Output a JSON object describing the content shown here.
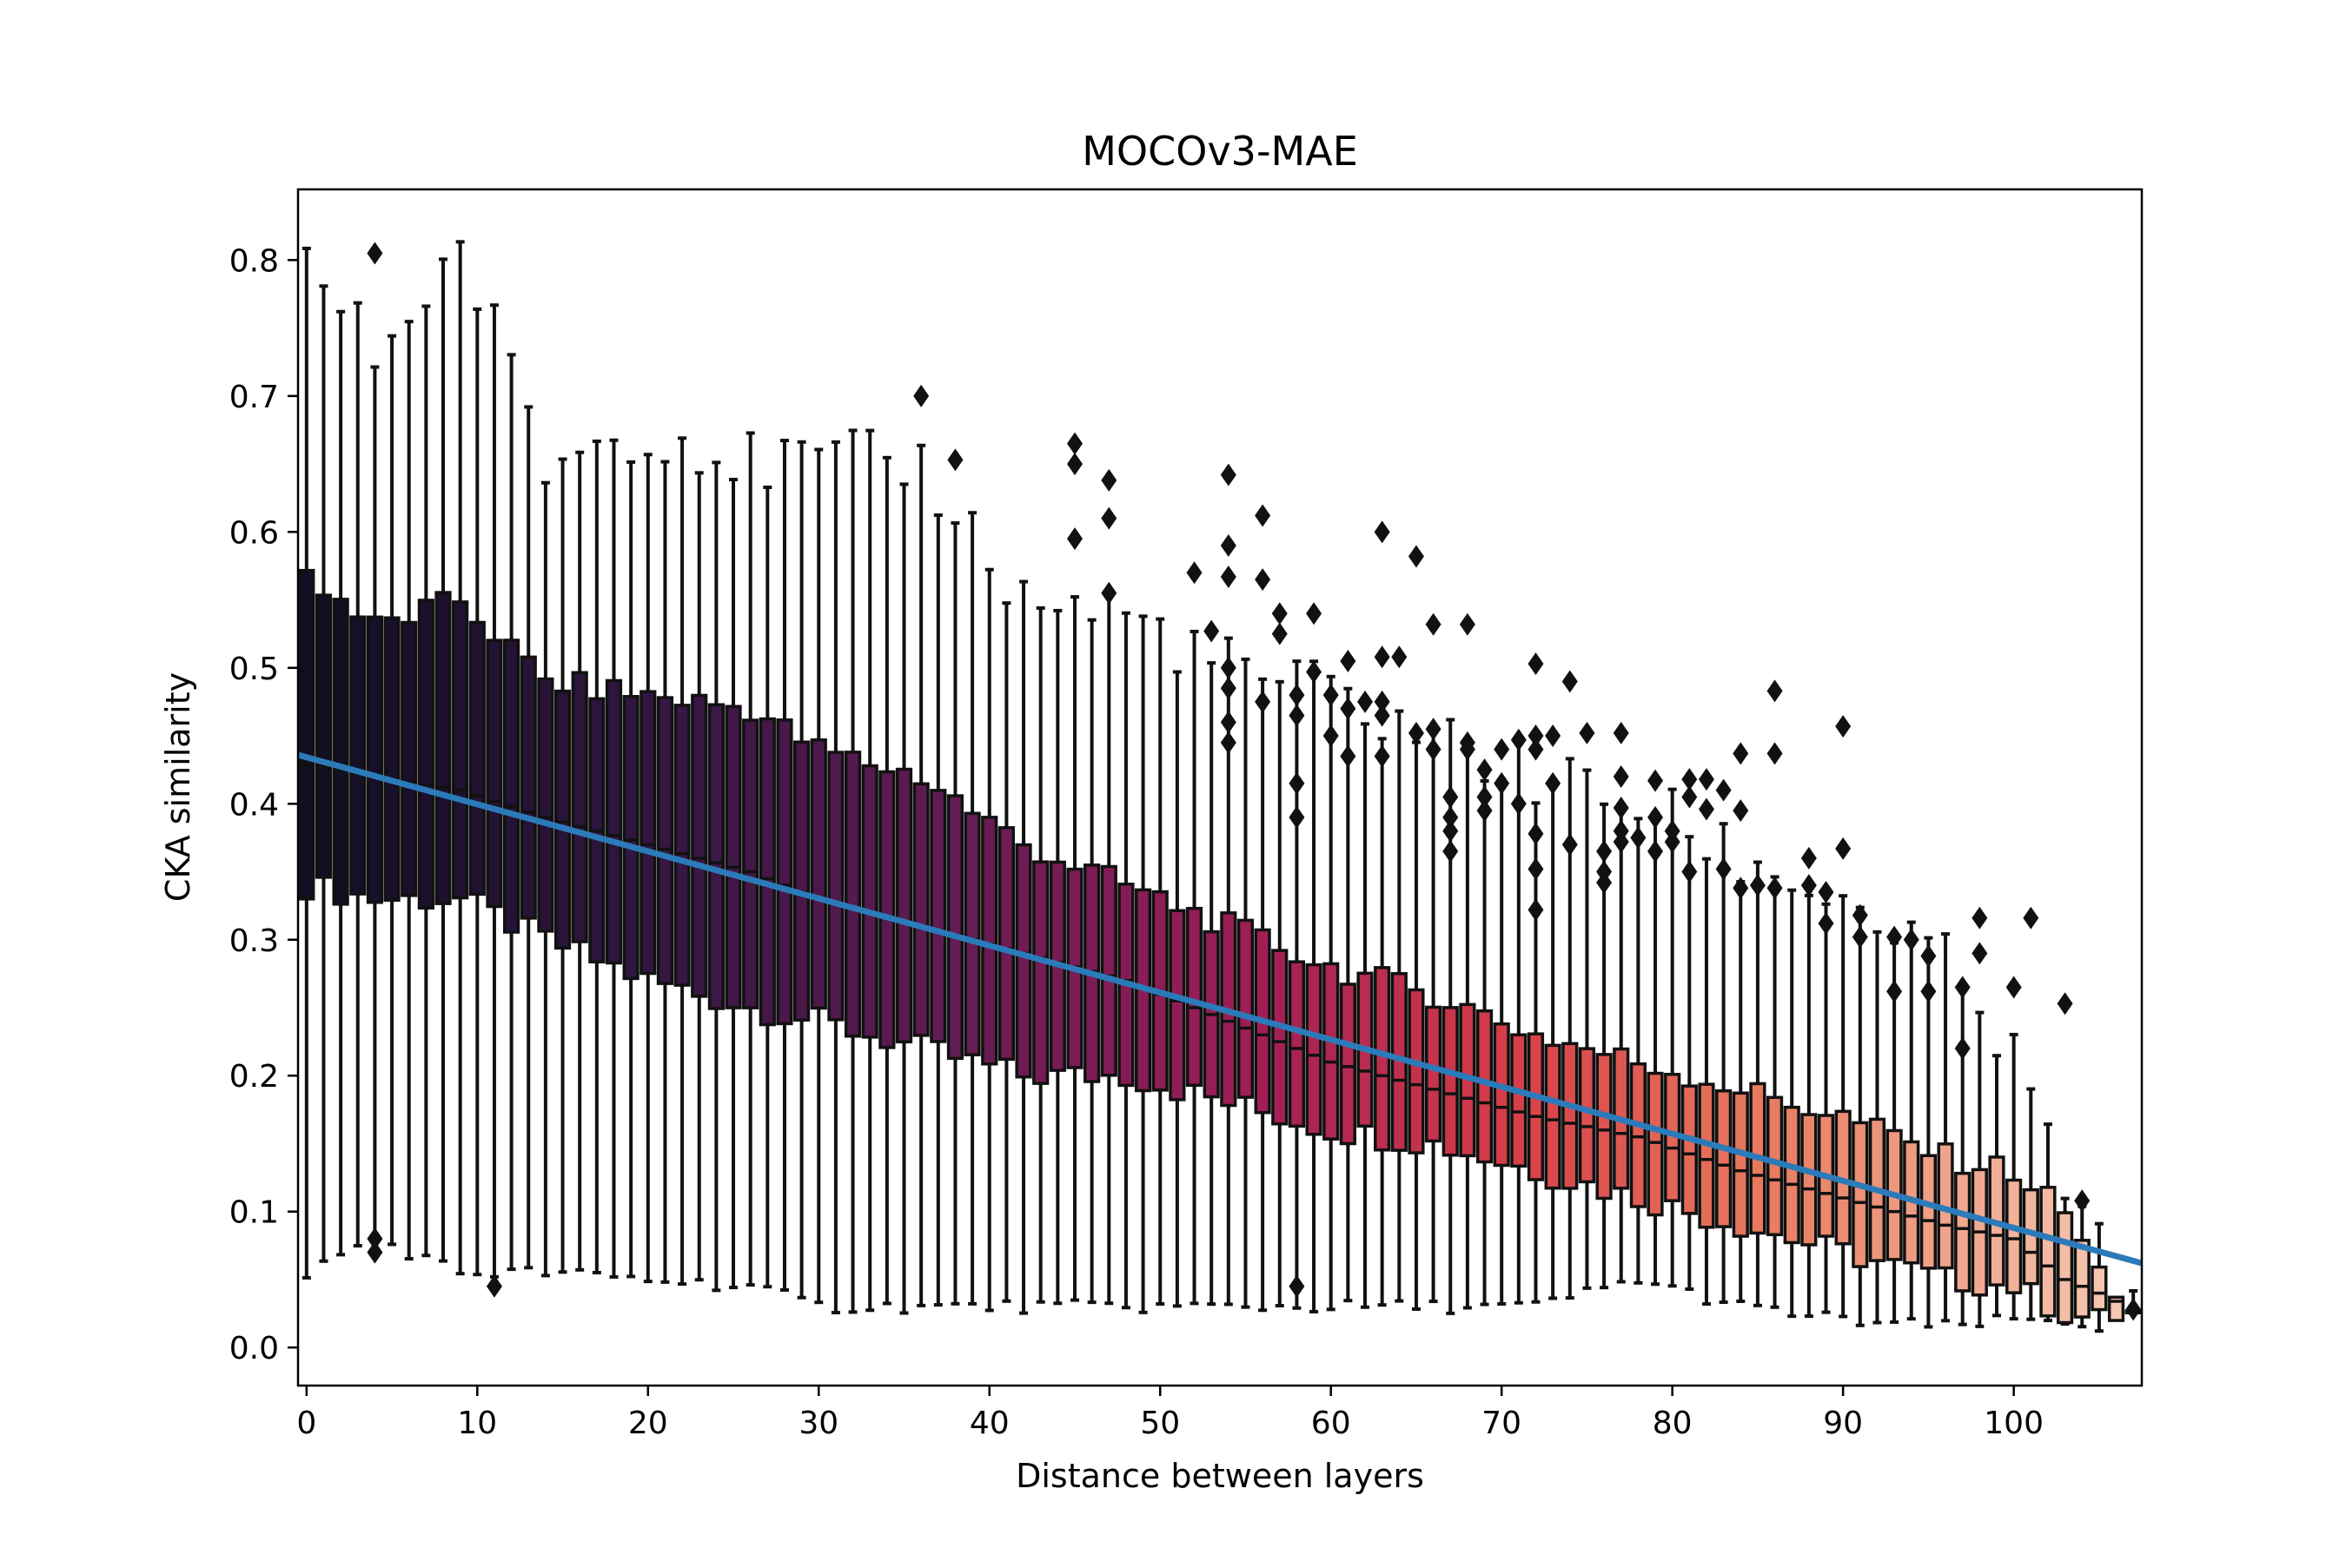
{
  "chart_data": {
    "type": "box",
    "title": "MOCOv3-MAE",
    "xlabel": "Distance between layers",
    "ylabel": "CKA similarity",
    "xlim": [
      -0.5,
      107.5
    ],
    "ylim": [
      -0.028,
      0.852
    ],
    "x_ticks": [
      0,
      10,
      20,
      30,
      40,
      50,
      60,
      70,
      80,
      90,
      100
    ],
    "y_ticks": [
      0.0,
      0.1,
      0.2,
      0.3,
      0.4,
      0.5,
      0.6,
      0.7,
      0.8
    ],
    "x_tick_labels": [
      "0",
      "10",
      "20",
      "30",
      "40",
      "50",
      "60",
      "70",
      "80",
      "90",
      "100"
    ],
    "y_tick_labels": [
      "0.0",
      "0.1",
      "0.2",
      "0.3",
      "0.4",
      "0.5",
      "0.6",
      "0.7",
      "0.8"
    ],
    "grid": false,
    "legend": "none",
    "box_palette": "dark purple (left) to red to light peach (right)",
    "fit_line_color": "#2b7bba",
    "box_count": 108,
    "box_anchors": [
      {
        "x": 0,
        "q1": 0.34,
        "median": 0.43,
        "q3": 0.57,
        "whislo": 0.055,
        "whishi": 0.8
      },
      {
        "x": 4,
        "q1": 0.33,
        "median": 0.42,
        "q3": 0.53,
        "whislo": 0.08,
        "whishi": 0.73
      },
      {
        "x": 9,
        "q1": 0.33,
        "median": 0.41,
        "q3": 0.55,
        "whislo": 0.055,
        "whishi": 0.81
      },
      {
        "x": 14,
        "q1": 0.3,
        "median": 0.39,
        "q3": 0.49,
        "whislo": 0.055,
        "whishi": 0.65
      },
      {
        "x": 20,
        "q1": 0.27,
        "median": 0.37,
        "q3": 0.48,
        "whislo": 0.05,
        "whishi": 0.68
      },
      {
        "x": 26,
        "q1": 0.25,
        "median": 0.35,
        "q3": 0.47,
        "whislo": 0.045,
        "whishi": 0.65
      },
      {
        "x": 30,
        "q1": 0.24,
        "median": 0.33,
        "q3": 0.44,
        "whislo": 0.03,
        "whishi": 0.65
      },
      {
        "x": 36,
        "q1": 0.22,
        "median": 0.31,
        "q3": 0.42,
        "whislo": 0.03,
        "whishi": 0.65
      },
      {
        "x": 42,
        "q1": 0.2,
        "median": 0.29,
        "q3": 0.37,
        "whislo": 0.03,
        "whishi": 0.55
      },
      {
        "x": 48,
        "q1": 0.2,
        "median": 0.27,
        "q3": 0.34,
        "whislo": 0.03,
        "whishi": 0.54
      },
      {
        "x": 54,
        "q1": 0.18,
        "median": 0.24,
        "q3": 0.31,
        "whislo": 0.03,
        "whishi": 0.5
      },
      {
        "x": 60,
        "q1": 0.16,
        "median": 0.21,
        "q3": 0.28,
        "whislo": 0.03,
        "whishi": 0.48
      },
      {
        "x": 66,
        "q1": 0.15,
        "median": 0.19,
        "q3": 0.26,
        "whislo": 0.03,
        "whishi": 0.45
      },
      {
        "x": 72,
        "q1": 0.13,
        "median": 0.17,
        "q3": 0.23,
        "whislo": 0.03,
        "whishi": 0.42
      },
      {
        "x": 78,
        "q1": 0.11,
        "median": 0.155,
        "q3": 0.21,
        "whislo": 0.05,
        "whishi": 0.4
      },
      {
        "x": 84,
        "q1": 0.09,
        "median": 0.13,
        "q3": 0.19,
        "whislo": 0.03,
        "whishi": 0.36
      },
      {
        "x": 90,
        "q1": 0.07,
        "median": 0.11,
        "q3": 0.17,
        "whislo": 0.02,
        "whishi": 0.33
      },
      {
        "x": 96,
        "q1": 0.05,
        "median": 0.09,
        "q3": 0.14,
        "whislo": 0.015,
        "whishi": 0.28
      },
      {
        "x": 100,
        "q1": 0.045,
        "median": 0.08,
        "q3": 0.13,
        "whislo": 0.02,
        "whishi": 0.21
      },
      {
        "x": 103,
        "q1": 0.025,
        "median": 0.05,
        "q3": 0.1,
        "whislo": 0.02,
        "whishi": 0.12
      },
      {
        "x": 105,
        "q1": 0.02,
        "median": 0.04,
        "q3": 0.055,
        "whislo": 0.015,
        "whishi": 0.07
      },
      {
        "x": 107,
        "q1": 0.026,
        "median": 0.028,
        "q3": 0.03,
        "whislo": 0.026,
        "whishi": 0.03
      }
    ],
    "outliers": [
      {
        "x": 4,
        "y": 0.805
      },
      {
        "x": 4,
        "y": 0.08
      },
      {
        "x": 4,
        "y": 0.07
      },
      {
        "x": 11,
        "y": 0.045
      },
      {
        "x": 36,
        "y": 0.7
      },
      {
        "x": 38,
        "y": 0.653
      },
      {
        "x": 45,
        "y": 0.665
      },
      {
        "x": 45,
        "y": 0.65
      },
      {
        "x": 45,
        "y": 0.595
      },
      {
        "x": 47,
        "y": 0.638
      },
      {
        "x": 47,
        "y": 0.61
      },
      {
        "x": 47,
        "y": 0.555
      },
      {
        "x": 52,
        "y": 0.57
      },
      {
        "x": 53,
        "y": 0.527
      },
      {
        "x": 54,
        "y": 0.642
      },
      {
        "x": 54,
        "y": 0.59
      },
      {
        "x": 54,
        "y": 0.567
      },
      {
        "x": 54,
        "y": 0.5
      },
      {
        "x": 54,
        "y": 0.485
      },
      {
        "x": 54,
        "y": 0.46
      },
      {
        "x": 54,
        "y": 0.445
      },
      {
        "x": 56,
        "y": 0.612
      },
      {
        "x": 56,
        "y": 0.565
      },
      {
        "x": 56,
        "y": 0.475
      },
      {
        "x": 57,
        "y": 0.54
      },
      {
        "x": 57,
        "y": 0.525
      },
      {
        "x": 58,
        "y": 0.48
      },
      {
        "x": 58,
        "y": 0.465
      },
      {
        "x": 58,
        "y": 0.415
      },
      {
        "x": 58,
        "y": 0.39
      },
      {
        "x": 58,
        "y": 0.045
      },
      {
        "x": 59,
        "y": 0.54
      },
      {
        "x": 59,
        "y": 0.497
      },
      {
        "x": 60,
        "y": 0.48
      },
      {
        "x": 60,
        "y": 0.45
      },
      {
        "x": 61,
        "y": 0.505
      },
      {
        "x": 61,
        "y": 0.47
      },
      {
        "x": 61,
        "y": 0.435
      },
      {
        "x": 62,
        "y": 0.475
      },
      {
        "x": 63,
        "y": 0.6
      },
      {
        "x": 63,
        "y": 0.508
      },
      {
        "x": 63,
        "y": 0.475
      },
      {
        "x": 63,
        "y": 0.465
      },
      {
        "x": 63,
        "y": 0.435
      },
      {
        "x": 64,
        "y": 0.508
      },
      {
        "x": 65,
        "y": 0.582
      },
      {
        "x": 65,
        "y": 0.452
      },
      {
        "x": 66,
        "y": 0.532
      },
      {
        "x": 66,
        "y": 0.455
      },
      {
        "x": 66,
        "y": 0.44
      },
      {
        "x": 67,
        "y": 0.405
      },
      {
        "x": 67,
        "y": 0.39
      },
      {
        "x": 67,
        "y": 0.38
      },
      {
        "x": 67,
        "y": 0.365
      },
      {
        "x": 68,
        "y": 0.532
      },
      {
        "x": 68,
        "y": 0.445
      },
      {
        "x": 68,
        "y": 0.44
      },
      {
        "x": 69,
        "y": 0.425
      },
      {
        "x": 69,
        "y": 0.405
      },
      {
        "x": 69,
        "y": 0.395
      },
      {
        "x": 70,
        "y": 0.44
      },
      {
        "x": 70,
        "y": 0.415
      },
      {
        "x": 71,
        "y": 0.447
      },
      {
        "x": 71,
        "y": 0.4
      },
      {
        "x": 72,
        "y": 0.503
      },
      {
        "x": 72,
        "y": 0.45
      },
      {
        "x": 72,
        "y": 0.44
      },
      {
        "x": 72,
        "y": 0.378
      },
      {
        "x": 72,
        "y": 0.352
      },
      {
        "x": 72,
        "y": 0.322
      },
      {
        "x": 73,
        "y": 0.45
      },
      {
        "x": 73,
        "y": 0.415
      },
      {
        "x": 74,
        "y": 0.49
      },
      {
        "x": 74,
        "y": 0.37
      },
      {
        "x": 75,
        "y": 0.452
      },
      {
        "x": 76,
        "y": 0.365
      },
      {
        "x": 76,
        "y": 0.35
      },
      {
        "x": 76,
        "y": 0.342
      },
      {
        "x": 77,
        "y": 0.452
      },
      {
        "x": 77,
        "y": 0.42
      },
      {
        "x": 77,
        "y": 0.397
      },
      {
        "x": 77,
        "y": 0.38
      },
      {
        "x": 77,
        "y": 0.372
      },
      {
        "x": 78,
        "y": 0.375
      },
      {
        "x": 79,
        "y": 0.417
      },
      {
        "x": 79,
        "y": 0.39
      },
      {
        "x": 79,
        "y": 0.365
      },
      {
        "x": 80,
        "y": 0.38
      },
      {
        "x": 80,
        "y": 0.372
      },
      {
        "x": 81,
        "y": 0.418
      },
      {
        "x": 81,
        "y": 0.405
      },
      {
        "x": 81,
        "y": 0.35
      },
      {
        "x": 82,
        "y": 0.418
      },
      {
        "x": 82,
        "y": 0.396
      },
      {
        "x": 83,
        "y": 0.41
      },
      {
        "x": 83,
        "y": 0.352
      },
      {
        "x": 84,
        "y": 0.437
      },
      {
        "x": 84,
        "y": 0.395
      },
      {
        "x": 84,
        "y": 0.338
      },
      {
        "x": 85,
        "y": 0.34
      },
      {
        "x": 86,
        "y": 0.483
      },
      {
        "x": 86,
        "y": 0.437
      },
      {
        "x": 86,
        "y": 0.338
      },
      {
        "x": 88,
        "y": 0.36
      },
      {
        "x": 88,
        "y": 0.34
      },
      {
        "x": 89,
        "y": 0.335
      },
      {
        "x": 89,
        "y": 0.312
      },
      {
        "x": 90,
        "y": 0.457
      },
      {
        "x": 90,
        "y": 0.367
      },
      {
        "x": 91,
        "y": 0.318
      },
      {
        "x": 91,
        "y": 0.302
      },
      {
        "x": 93,
        "y": 0.302
      },
      {
        "x": 93,
        "y": 0.262
      },
      {
        "x": 94,
        "y": 0.3
      },
      {
        "x": 95,
        "y": 0.288
      },
      {
        "x": 95,
        "y": 0.262
      },
      {
        "x": 97,
        "y": 0.265
      },
      {
        "x": 97,
        "y": 0.22
      },
      {
        "x": 98,
        "y": 0.316
      },
      {
        "x": 98,
        "y": 0.29
      },
      {
        "x": 100,
        "y": 0.265
      },
      {
        "x": 101,
        "y": 0.316
      },
      {
        "x": 103,
        "y": 0.253
      },
      {
        "x": 104,
        "y": 0.108
      },
      {
        "x": 107,
        "y": 0.028
      }
    ],
    "fit_line": {
      "x": [
        -0.5,
        107.5
      ],
      "y": [
        0.436,
        0.062
      ]
    }
  }
}
